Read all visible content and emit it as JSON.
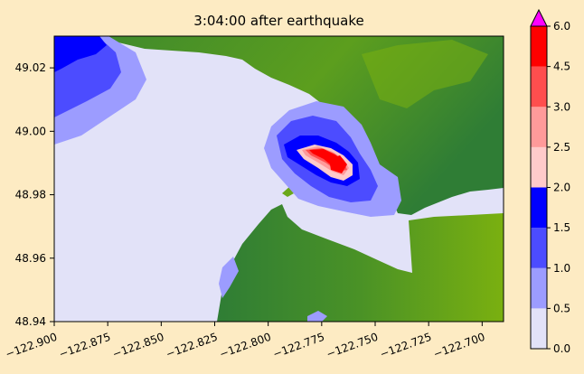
{
  "title": "3:04:00 after earthquake",
  "map": {
    "x_ticks": [
      "−122.900",
      "−122.875",
      "−122.850",
      "−122.825",
      "−122.800",
      "−122.775",
      "−122.750",
      "−122.725",
      "−122.700"
    ],
    "x_tick_values": [
      -122.9,
      -122.875,
      -122.85,
      -122.825,
      -122.8,
      -122.775,
      -122.75,
      -122.725,
      -122.7
    ],
    "y_ticks": [
      "49.02",
      "49.00",
      "48.98",
      "48.96",
      "48.94"
    ],
    "y_tick_values": [
      49.02,
      49.0,
      48.98,
      48.96,
      48.94
    ],
    "xlim": [
      -122.9,
      -122.69
    ],
    "ylim": [
      48.94,
      49.03
    ],
    "colors": {
      "water_calm": "#e2e2f8",
      "land_dark": "#2f7d35",
      "land_light": "#6aa81a",
      "background": "#fdebc3"
    }
  },
  "colorbar": {
    "ticks": [
      "0.0",
      "0.5",
      "1.0",
      "1.5",
      "2.0",
      "2.5",
      "3.0",
      "4.5",
      "6.0"
    ],
    "levels": [
      0.0,
      0.5,
      1.0,
      1.5,
      2.0,
      2.5,
      3.0,
      4.5,
      6.0
    ],
    "colors": [
      "#e2e2f8",
      "#9c9cff",
      "#4c4cff",
      "#0000ff",
      "#ffcaca",
      "#ff9a9a",
      "#ff4e4e",
      "#ff0000"
    ],
    "extend_color": "#ff00ff"
  }
}
